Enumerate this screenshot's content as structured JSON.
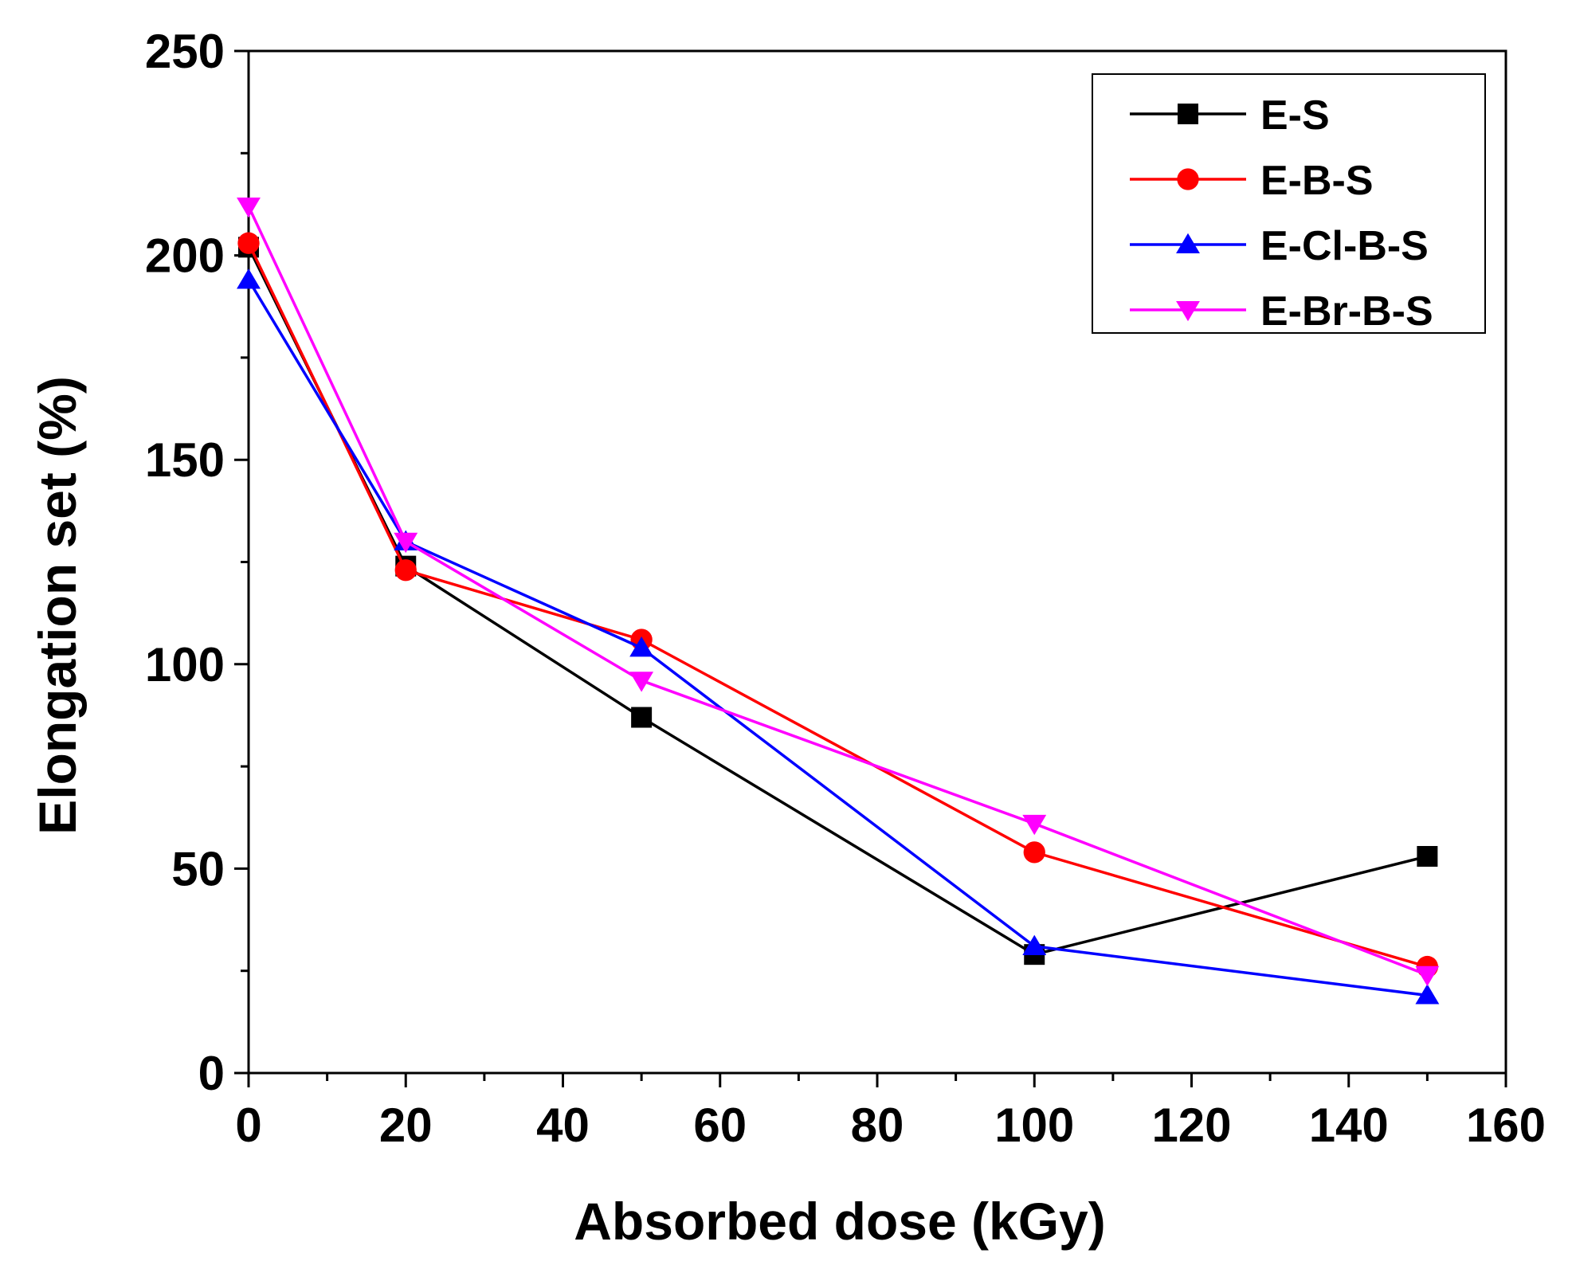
{
  "chart_data": {
    "type": "line",
    "title": "",
    "xlabel": "Absorbed dose (kGy)",
    "ylabel": "Elongation set (%)",
    "xlim": [
      0,
      160
    ],
    "ylim": [
      0,
      250
    ],
    "xticks": [
      0,
      20,
      40,
      60,
      80,
      100,
      120,
      140,
      160
    ],
    "yticks": [
      0,
      50,
      100,
      150,
      200,
      250
    ],
    "x_tick_labels": [
      "0",
      "20",
      "40",
      "60",
      "80",
      "100",
      "120",
      "140",
      "160"
    ],
    "y_tick_labels": [
      "0",
      "50",
      "100",
      "150",
      "200",
      "250"
    ],
    "grid": false,
    "legend_position": "top-right",
    "x": [
      0,
      20,
      50,
      100,
      150
    ],
    "series": [
      {
        "name": "E-S",
        "color": "#000000",
        "marker": "square",
        "values": [
          202,
          124,
          87,
          29,
          53
        ]
      },
      {
        "name": "E-B-S",
        "color": "#ff0000",
        "marker": "circle",
        "values": [
          203,
          123,
          106,
          54,
          26
        ]
      },
      {
        "name": "E-Cl-B-S",
        "color": "#0000ff",
        "marker": "triangle-up",
        "values": [
          194,
          130,
          104,
          31,
          19
        ]
      },
      {
        "name": "E-Br-B-S",
        "color": "#ff00ff",
        "marker": "triangle-down",
        "values": [
          212,
          130,
          96,
          61,
          24
        ]
      }
    ]
  }
}
